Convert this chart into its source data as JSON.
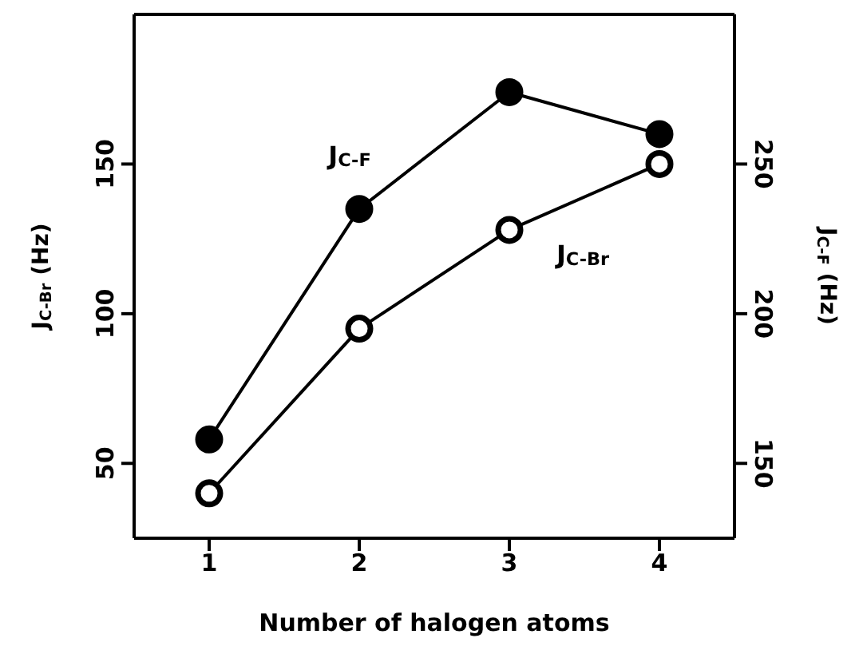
{
  "chart_data": {
    "type": "line",
    "xlabel": "Number of halogen atoms",
    "ylabel": "J$_{C-Br}$ (Hz)",
    "y2label": "J$_{C-F}$ (Hz)",
    "x": [
      1,
      2,
      3,
      4
    ],
    "xlim": [
      0.5,
      4.5
    ],
    "xticks": [
      1,
      2,
      3,
      4
    ],
    "ylim": [
      25,
      200
    ],
    "yticks": [
      50,
      100,
      150
    ],
    "y2lim": [
      125,
      300
    ],
    "y2ticks": [
      150,
      200,
      250
    ],
    "marker": "circle",
    "series": [
      {
        "name": "J$_{C-F}$",
        "color": "#000000",
        "axis": "y2",
        "values": [
          158,
          235,
          274,
          260
        ]
      },
      {
        "name": "J$_{C-Br}$",
        "color": "#000000",
        "axis": "y",
        "values": [
          40,
          95,
          128,
          150
        ]
      }
    ]
  }
}
